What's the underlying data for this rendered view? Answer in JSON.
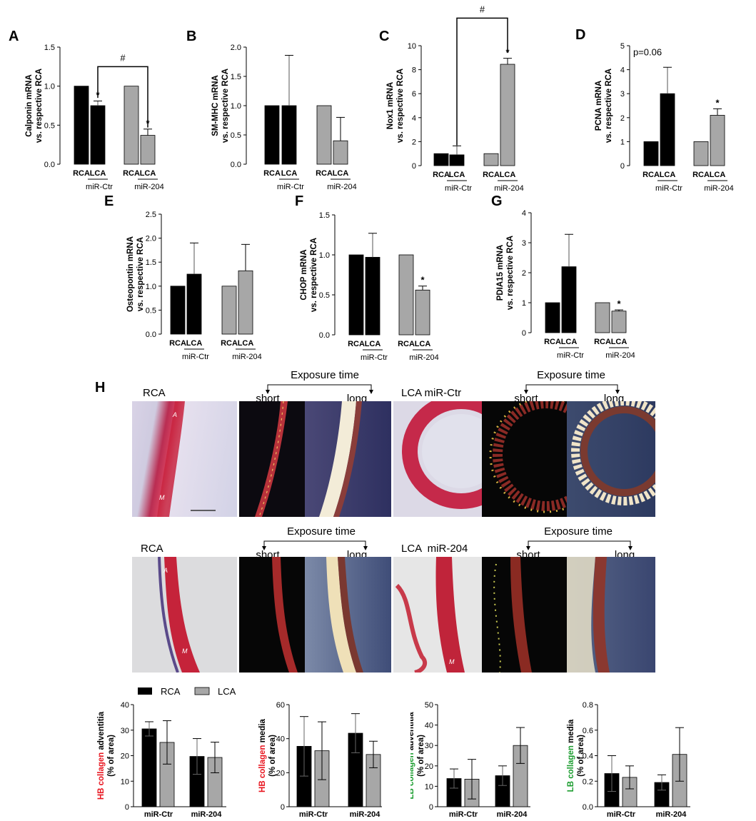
{
  "chart_data": [
    {
      "id": "A",
      "type": "bar",
      "ylabel": "Calponin mRNA\nvs. respective RCA",
      "ylim": [
        0,
        1.5
      ],
      "yticks": [
        "0.0",
        "0.5",
        "1.0",
        "1.5"
      ],
      "categories": [
        "RCA",
        "LCA",
        "RCA",
        "LCA"
      ],
      "groups": [
        "miR-Ctr",
        "miR-204"
      ],
      "values": [
        1.0,
        0.75,
        1.0,
        0.37
      ],
      "errors": [
        0,
        0.06,
        0,
        0.08
      ],
      "sig": [
        "",
        "*",
        "",
        "*"
      ],
      "bracket": {
        "from": 1,
        "to": 3,
        "label": "#"
      }
    },
    {
      "id": "B",
      "type": "bar",
      "ylabel": "SM-MHC mRNA\nvs. respective RCA",
      "ylim": [
        0,
        2.0
      ],
      "yticks": [
        "0.0",
        "0.5",
        "1.0",
        "1.5",
        "2.0"
      ],
      "categories": [
        "RCA",
        "LCA",
        "RCA",
        "LCA"
      ],
      "groups": [
        "miR-Ctr",
        "miR-204"
      ],
      "values": [
        1.0,
        1.0,
        1.0,
        0.4
      ],
      "errors": [
        0,
        0.86,
        0,
        0.4
      ],
      "sig": [
        "",
        "",
        "",
        ""
      ]
    },
    {
      "id": "C",
      "type": "bar",
      "ylabel": "Nox1 mRNA\nvs. respective RCA",
      "ylim": [
        0,
        10
      ],
      "yticks": [
        "0",
        "2",
        "4",
        "6",
        "8",
        "10"
      ],
      "categories": [
        "RCA",
        "LCA",
        "RCA",
        "LCA"
      ],
      "groups": [
        "miR-Ctr",
        "miR-204"
      ],
      "values": [
        1.0,
        0.9,
        1.0,
        8.45
      ],
      "errors": [
        0,
        0.75,
        0,
        0.5
      ],
      "sig": [
        "",
        "",
        "",
        "*"
      ],
      "bracket": {
        "from": 1,
        "to": 3,
        "label": "#"
      }
    },
    {
      "id": "D",
      "type": "bar",
      "ylabel": "PCNA mRNA\nvs. respective RCA",
      "ylim": [
        0,
        5
      ],
      "yticks": [
        "0",
        "1",
        "2",
        "3",
        "4",
        "5"
      ],
      "categories": [
        "RCA",
        "LCA",
        "RCA",
        "LCA"
      ],
      "groups": [
        "miR-Ctr",
        "miR-204"
      ],
      "values": [
        1.0,
        3.0,
        1.0,
        2.1
      ],
      "errors": [
        0,
        1.1,
        0,
        0.27
      ],
      "sig": [
        "",
        "",
        "",
        "*"
      ],
      "pnote": "p=0.06"
    },
    {
      "id": "E",
      "type": "bar",
      "ylabel": "Osteopontin mRNA\nvs. respective RCA",
      "ylim": [
        0,
        2.5
      ],
      "yticks": [
        "0.0",
        "0.5",
        "1.0",
        "1.5",
        "2.0",
        "2.5"
      ],
      "categories": [
        "RCA",
        "LCA",
        "RCA",
        "LCA"
      ],
      "groups": [
        "miR-Ctr",
        "miR-204"
      ],
      "values": [
        1.0,
        1.25,
        1.0,
        1.32
      ],
      "errors": [
        0,
        0.65,
        0,
        0.55
      ],
      "sig": [
        "",
        "",
        "",
        ""
      ]
    },
    {
      "id": "F",
      "type": "bar",
      "ylabel": "CHOP mRNA\nvs. respective RCA",
      "ylim": [
        0,
        1.5
      ],
      "yticks": [
        "0.0",
        "0.5",
        "1.0",
        "1.5"
      ],
      "categories": [
        "RCA",
        "LCA",
        "RCA",
        "LCA"
      ],
      "groups": [
        "miR-Ctr",
        "miR-204"
      ],
      "values": [
        1.0,
        0.97,
        1.0,
        0.56
      ],
      "errors": [
        0,
        0.3,
        0,
        0.05
      ],
      "sig": [
        "",
        "",
        "",
        "*"
      ]
    },
    {
      "id": "G",
      "type": "bar",
      "ylabel": "PDIA15 mRNA\nvs. respective RCA",
      "ylim": [
        0,
        4
      ],
      "yticks": [
        "0",
        "1",
        "2",
        "3",
        "4"
      ],
      "categories": [
        "RCA",
        "LCA",
        "RCA",
        "LCA"
      ],
      "groups": [
        "miR-Ctr",
        "miR-204"
      ],
      "values": [
        1.0,
        2.2,
        1.0,
        0.72
      ],
      "errors": [
        0,
        1.08,
        0,
        0.04
      ],
      "sig": [
        "",
        "",
        "",
        "*"
      ]
    },
    {
      "id": "H1",
      "type": "bar",
      "ylabel_colored": "HB collagen",
      "ylabel_rest": " adventitia",
      "ylabel2": "(% of area)",
      "label_color": "#e8141e",
      "ylim": [
        0,
        40
      ],
      "yticks": [
        "0",
        "10",
        "20",
        "30",
        "40"
      ],
      "groups": [
        "miR-Ctr",
        "miR-204"
      ],
      "series": [
        {
          "name": "RCA",
          "values": [
            30.5,
            19.7
          ],
          "errors": [
            2.8,
            7
          ]
        },
        {
          "name": "LCA",
          "values": [
            25.2,
            19.3
          ],
          "errors": [
            8.5,
            6
          ]
        }
      ]
    },
    {
      "id": "H2",
      "type": "bar",
      "ylabel_colored": "HB collagen",
      "ylabel_rest": " media",
      "ylabel2": "(% of area)",
      "label_color": "#e8141e",
      "ylim": [
        0,
        60
      ],
      "yticks": [
        "0",
        "20",
        "40",
        "60"
      ],
      "groups": [
        "miR-Ctr",
        "miR-204"
      ],
      "series": [
        {
          "name": "RCA",
          "values": [
            35.5,
            43.2
          ],
          "errors": [
            17.5,
            11.5
          ]
        },
        {
          "name": "LCA",
          "values": [
            32.9,
            30.7
          ],
          "errors": [
            17,
            7.8
          ]
        }
      ]
    },
    {
      "id": "H3",
      "type": "bar",
      "ylabel_colored": "LB collagen",
      "ylabel_rest": " adventitia",
      "ylabel2": "(% of area)",
      "label_color": "#1a9c2e",
      "ylim": [
        0,
        50
      ],
      "yticks": [
        "0",
        "10",
        "20",
        "30",
        "40",
        "50"
      ],
      "groups": [
        "miR-Ctr",
        "miR-204"
      ],
      "series": [
        {
          "name": "RCA",
          "values": [
            13.8,
            15.2
          ],
          "errors": [
            4.7,
            4.8
          ]
        },
        {
          "name": "LCA",
          "values": [
            13.5,
            30.0
          ],
          "errors": [
            9.7,
            8.8
          ]
        }
      ]
    },
    {
      "id": "H4",
      "type": "bar",
      "ylabel_colored": "LB collagen",
      "ylabel_rest": " media",
      "ylabel2": "(% of area)",
      "label_color": "#1a9c2e",
      "ylim": [
        0,
        0.8
      ],
      "yticks": [
        "0.0",
        "0.2",
        "0.4",
        "0.6",
        "0.8"
      ],
      "groups": [
        "miR-Ctr",
        "miR-204"
      ],
      "series": [
        {
          "name": "RCA",
          "values": [
            0.26,
            0.19
          ],
          "errors": [
            0.14,
            0.06
          ]
        },
        {
          "name": "LCA",
          "values": [
            0.23,
            0.41
          ],
          "errors": [
            0.09,
            0.21
          ]
        }
      ]
    }
  ],
  "panel_h": {
    "letter": "H",
    "row1": {
      "left_label": "RCA",
      "right_label": "LCA miR-Ctr"
    },
    "row2": {
      "left_label": "RCA",
      "right_label": "LCA  miR-204"
    },
    "exposure": {
      "title": "Exposure time",
      "short": "short",
      "long": "long"
    },
    "legend": [
      {
        "label": "RCA",
        "color": "#000000"
      },
      {
        "label": "LCA",
        "color": "#a7a7a7"
      }
    ],
    "micro_marks": {
      "A": "A",
      "M": "M"
    }
  },
  "colors": {
    "dark": "#000000",
    "gray": "#a7a7a7",
    "red": "#e8141e",
    "green": "#1a9c2e"
  }
}
